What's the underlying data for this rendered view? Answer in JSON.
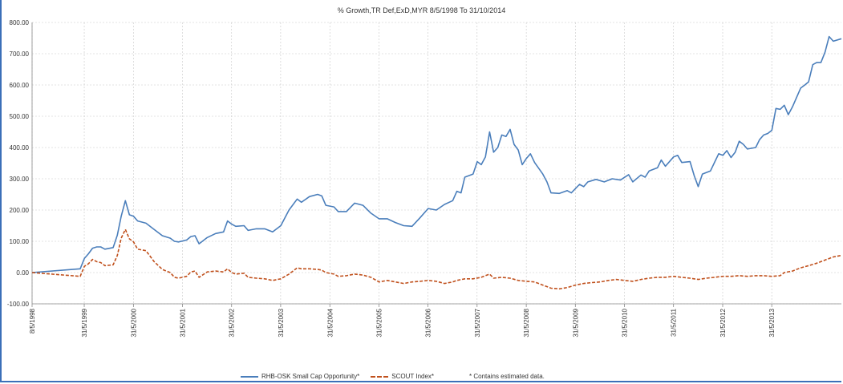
{
  "chart_data": {
    "type": "line",
    "title": "% Growth,TR Def,ExD,MYR 8/5/1998 To 31/10/2014",
    "xlabel": "",
    "ylabel": "",
    "ylim": [
      -100,
      800
    ],
    "yticks": [
      "800.00",
      "700.00",
      "600.00",
      "500.00",
      "400.00",
      "300.00",
      "200.00",
      "100.00",
      "0.00",
      "-100.00"
    ],
    "ytick_values": [
      800,
      700,
      600,
      500,
      400,
      300,
      200,
      100,
      0,
      -100
    ],
    "xlim": [
      "1998-05-08",
      "2014-10-31"
    ],
    "xticks": [
      "8/5/1998",
      "31/5/1999",
      "31/5/2000",
      "31/5/2001",
      "31/5/2002",
      "31/5/2003",
      "31/5/2004",
      "31/5/2005",
      "31/5/2006",
      "31/5/2007",
      "31/5/2008",
      "31/5/2009",
      "31/5/2010",
      "31/5/2011",
      "31/5/2012",
      "31/5/2013"
    ],
    "xtick_dates": [
      "1998-05-08",
      "1999-05-31",
      "2000-05-31",
      "2001-05-31",
      "2002-05-31",
      "2003-05-31",
      "2004-05-31",
      "2005-05-31",
      "2006-05-31",
      "2007-05-31",
      "2008-05-31",
      "2009-05-31",
      "2010-05-31",
      "2011-05-31",
      "2012-05-31",
      "2013-05-31"
    ],
    "grid": true,
    "legend_position": "bottom",
    "series": [
      {
        "name": "RHB-OSK Small Cap Opportunity*",
        "color": "#4a7ebb",
        "style": "solid",
        "points": [
          [
            "1998-05-08",
            0
          ],
          [
            "1999-05-01",
            12
          ],
          [
            "1999-06-01",
            45
          ],
          [
            "1999-07-01",
            60
          ],
          [
            "1999-08-01",
            78
          ],
          [
            "1999-09-01",
            82
          ],
          [
            "1999-10-01",
            82
          ],
          [
            "1999-11-01",
            75
          ],
          [
            "2000-01-01",
            80
          ],
          [
            "2000-02-01",
            120
          ],
          [
            "2000-03-01",
            180
          ],
          [
            "2000-04-01",
            230
          ],
          [
            "2000-05-01",
            185
          ],
          [
            "2000-06-01",
            180
          ],
          [
            "2000-07-01",
            165
          ],
          [
            "2000-09-01",
            158
          ],
          [
            "2000-11-01",
            138
          ],
          [
            "2001-01-01",
            118
          ],
          [
            "2001-03-01",
            110
          ],
          [
            "2001-04-01",
            100
          ],
          [
            "2001-05-01",
            98
          ],
          [
            "2001-07-01",
            104
          ],
          [
            "2001-08-01",
            115
          ],
          [
            "2001-09-01",
            118
          ],
          [
            "2001-10-01",
            92
          ],
          [
            "2001-12-01",
            112
          ],
          [
            "2002-02-01",
            125
          ],
          [
            "2002-04-01",
            130
          ],
          [
            "2002-05-01",
            165
          ],
          [
            "2002-06-01",
            155
          ],
          [
            "2002-07-01",
            148
          ],
          [
            "2002-09-01",
            150
          ],
          [
            "2002-10-01",
            135
          ],
          [
            "2002-12-01",
            140
          ],
          [
            "2003-02-01",
            140
          ],
          [
            "2003-04-01",
            130
          ],
          [
            "2003-06-01",
            150
          ],
          [
            "2003-08-01",
            200
          ],
          [
            "2003-10-01",
            235
          ],
          [
            "2003-11-01",
            225
          ],
          [
            "2004-01-01",
            243
          ],
          [
            "2004-03-01",
            250
          ],
          [
            "2004-04-01",
            245
          ],
          [
            "2004-05-01",
            215
          ],
          [
            "2004-07-01",
            210
          ],
          [
            "2004-08-01",
            195
          ],
          [
            "2004-10-01",
            195
          ],
          [
            "2004-12-01",
            222
          ],
          [
            "2005-02-01",
            215
          ],
          [
            "2005-04-01",
            190
          ],
          [
            "2005-06-01",
            172
          ],
          [
            "2005-08-01",
            172
          ],
          [
            "2005-10-01",
            160
          ],
          [
            "2005-12-01",
            150
          ],
          [
            "2006-02-01",
            148
          ],
          [
            "2006-04-01",
            175
          ],
          [
            "2006-06-01",
            205
          ],
          [
            "2006-08-01",
            200
          ],
          [
            "2006-10-01",
            218
          ],
          [
            "2006-12-01",
            230
          ],
          [
            "2007-01-01",
            260
          ],
          [
            "2007-02-01",
            255
          ],
          [
            "2007-03-01",
            305
          ],
          [
            "2007-05-01",
            315
          ],
          [
            "2007-06-01",
            355
          ],
          [
            "2007-07-01",
            345
          ],
          [
            "2007-08-01",
            370
          ],
          [
            "2007-09-01",
            450
          ],
          [
            "2007-10-01",
            385
          ],
          [
            "2007-11-01",
            400
          ],
          [
            "2007-12-01",
            440
          ],
          [
            "2008-01-01",
            435
          ],
          [
            "2008-02-01",
            458
          ],
          [
            "2008-03-01",
            410
          ],
          [
            "2008-04-01",
            392
          ],
          [
            "2008-05-01",
            345
          ],
          [
            "2008-06-01",
            365
          ],
          [
            "2008-07-01",
            380
          ],
          [
            "2008-08-01",
            352
          ],
          [
            "2008-10-01",
            315
          ],
          [
            "2008-11-01",
            290
          ],
          [
            "2008-12-01",
            255
          ],
          [
            "2009-02-01",
            253
          ],
          [
            "2009-04-01",
            262
          ],
          [
            "2009-05-01",
            255
          ],
          [
            "2009-07-01",
            282
          ],
          [
            "2009-08-01",
            275
          ],
          [
            "2009-09-01",
            290
          ],
          [
            "2009-11-01",
            298
          ],
          [
            "2010-01-01",
            290
          ],
          [
            "2010-03-01",
            300
          ],
          [
            "2010-05-01",
            296
          ],
          [
            "2010-07-01",
            313
          ],
          [
            "2010-08-01",
            290
          ],
          [
            "2010-10-01",
            312
          ],
          [
            "2010-11-01",
            305
          ],
          [
            "2010-12-01",
            325
          ],
          [
            "2011-02-01",
            335
          ],
          [
            "2011-03-01",
            360
          ],
          [
            "2011-04-01",
            340
          ],
          [
            "2011-06-01",
            370
          ],
          [
            "2011-07-01",
            375
          ],
          [
            "2011-08-01",
            352
          ],
          [
            "2011-10-01",
            355
          ],
          [
            "2011-11-01",
            310
          ],
          [
            "2011-12-01",
            275
          ],
          [
            "2012-01-01",
            315
          ],
          [
            "2012-03-01",
            325
          ],
          [
            "2012-05-01",
            380
          ],
          [
            "2012-06-01",
            375
          ],
          [
            "2012-07-01",
            390
          ],
          [
            "2012-08-01",
            368
          ],
          [
            "2012-09-01",
            385
          ],
          [
            "2012-10-01",
            420
          ],
          [
            "2012-11-01",
            410
          ],
          [
            "2012-12-01",
            395
          ],
          [
            "2013-02-01",
            400
          ],
          [
            "2013-03-01",
            425
          ],
          [
            "2013-04-01",
            440
          ],
          [
            "2013-05-01",
            445
          ],
          [
            "2013-06-01",
            455
          ],
          [
            "2013-07-01",
            525
          ],
          [
            "2013-08-01",
            522
          ],
          [
            "2013-09-01",
            535
          ],
          [
            "2013-10-01",
            505
          ],
          [
            "2013-11-01",
            530
          ],
          [
            "2014-01-01",
            590
          ],
          [
            "2014-02-01",
            600
          ],
          [
            "2014-03-01",
            610
          ],
          [
            "2014-04-01",
            665
          ],
          [
            "2014-05-01",
            672
          ],
          [
            "2014-06-01",
            672
          ],
          [
            "2014-07-01",
            705
          ],
          [
            "2014-08-01",
            755
          ],
          [
            "2014-09-01",
            740
          ],
          [
            "2014-10-31",
            748
          ]
        ]
      },
      {
        "name": "SCOUT  Index*",
        "color": "#c0501c",
        "style": "dashed",
        "points": [
          [
            "1998-05-08",
            0
          ],
          [
            "1999-05-01",
            -12
          ],
          [
            "1999-06-01",
            20
          ],
          [
            "1999-07-01",
            28
          ],
          [
            "1999-08-01",
            42
          ],
          [
            "1999-09-01",
            35
          ],
          [
            "1999-10-01",
            32
          ],
          [
            "1999-11-01",
            22
          ],
          [
            "2000-01-01",
            25
          ],
          [
            "2000-02-01",
            55
          ],
          [
            "2000-03-01",
            110
          ],
          [
            "2000-04-01",
            138
          ],
          [
            "2000-05-01",
            108
          ],
          [
            "2000-06-01",
            98
          ],
          [
            "2000-07-01",
            75
          ],
          [
            "2000-09-01",
            70
          ],
          [
            "2000-11-01",
            35
          ],
          [
            "2001-01-01",
            10
          ],
          [
            "2001-03-01",
            0
          ],
          [
            "2001-04-01",
            -15
          ],
          [
            "2001-05-01",
            -18
          ],
          [
            "2001-07-01",
            -12
          ],
          [
            "2001-08-01",
            2
          ],
          [
            "2001-09-01",
            5
          ],
          [
            "2001-10-01",
            -15
          ],
          [
            "2001-12-01",
            2
          ],
          [
            "2002-02-01",
            5
          ],
          [
            "2002-04-01",
            2
          ],
          [
            "2002-05-01",
            12
          ],
          [
            "2002-06-01",
            0
          ],
          [
            "2002-07-01",
            -5
          ],
          [
            "2002-09-01",
            -2
          ],
          [
            "2002-10-01",
            -15
          ],
          [
            "2002-12-01",
            -18
          ],
          [
            "2003-02-01",
            -20
          ],
          [
            "2003-04-01",
            -25
          ],
          [
            "2003-06-01",
            -20
          ],
          [
            "2003-08-01",
            -5
          ],
          [
            "2003-10-01",
            15
          ],
          [
            "2003-11-01",
            12
          ],
          [
            "2004-01-01",
            12
          ],
          [
            "2004-03-01",
            10
          ],
          [
            "2004-04-01",
            8
          ],
          [
            "2004-05-01",
            0
          ],
          [
            "2004-07-01",
            -5
          ],
          [
            "2004-08-01",
            -12
          ],
          [
            "2004-10-01",
            -10
          ],
          [
            "2004-12-01",
            -5
          ],
          [
            "2005-02-01",
            -8
          ],
          [
            "2005-04-01",
            -15
          ],
          [
            "2005-06-01",
            -30
          ],
          [
            "2005-08-01",
            -25
          ],
          [
            "2005-10-01",
            -30
          ],
          [
            "2005-12-01",
            -35
          ],
          [
            "2006-02-01",
            -30
          ],
          [
            "2006-04-01",
            -28
          ],
          [
            "2006-06-01",
            -25
          ],
          [
            "2006-08-01",
            -28
          ],
          [
            "2006-10-01",
            -35
          ],
          [
            "2006-12-01",
            -30
          ],
          [
            "2007-01-01",
            -25
          ],
          [
            "2007-03-01",
            -20
          ],
          [
            "2007-05-01",
            -20
          ],
          [
            "2007-07-01",
            -15
          ],
          [
            "2007-09-01",
            -5
          ],
          [
            "2007-10-01",
            -18
          ],
          [
            "2007-12-01",
            -15
          ],
          [
            "2008-02-01",
            -18
          ],
          [
            "2008-04-01",
            -25
          ],
          [
            "2008-06-01",
            -28
          ],
          [
            "2008-08-01",
            -30
          ],
          [
            "2008-10-01",
            -40
          ],
          [
            "2008-12-01",
            -50
          ],
          [
            "2009-02-01",
            -52
          ],
          [
            "2009-04-01",
            -48
          ],
          [
            "2009-06-01",
            -40
          ],
          [
            "2009-08-01",
            -35
          ],
          [
            "2009-10-01",
            -32
          ],
          [
            "2009-12-01",
            -30
          ],
          [
            "2010-02-01",
            -25
          ],
          [
            "2010-04-01",
            -22
          ],
          [
            "2010-06-01",
            -25
          ],
          [
            "2010-08-01",
            -28
          ],
          [
            "2010-10-01",
            -22
          ],
          [
            "2010-12-01",
            -18
          ],
          [
            "2011-02-01",
            -15
          ],
          [
            "2011-04-01",
            -15
          ],
          [
            "2011-06-01",
            -12
          ],
          [
            "2011-08-01",
            -15
          ],
          [
            "2011-10-01",
            -18
          ],
          [
            "2011-12-01",
            -22
          ],
          [
            "2012-02-01",
            -18
          ],
          [
            "2012-04-01",
            -15
          ],
          [
            "2012-06-01",
            -12
          ],
          [
            "2012-08-01",
            -12
          ],
          [
            "2012-10-01",
            -10
          ],
          [
            "2012-12-01",
            -12
          ],
          [
            "2013-02-01",
            -10
          ],
          [
            "2013-04-01",
            -10
          ],
          [
            "2013-06-01",
            -12
          ],
          [
            "2013-08-01",
            -10
          ],
          [
            "2013-09-01",
            0
          ],
          [
            "2013-11-01",
            5
          ],
          [
            "2014-01-01",
            15
          ],
          [
            "2014-03-01",
            22
          ],
          [
            "2014-05-01",
            30
          ],
          [
            "2014-07-01",
            40
          ],
          [
            "2014-09-01",
            50
          ],
          [
            "2014-10-31",
            55
          ]
        ]
      }
    ]
  },
  "legend": {
    "note": "*  Contains estimated data."
  }
}
